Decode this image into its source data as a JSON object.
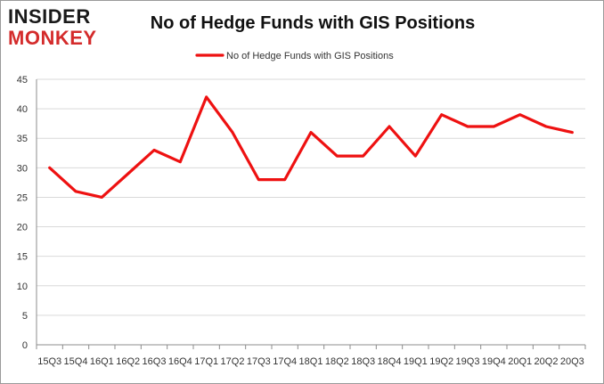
{
  "logo": {
    "top": "INSIDER",
    "bottom": "MONKEY"
  },
  "chart_data": {
    "type": "line",
    "title": "No of Hedge Funds with GIS Positions",
    "xlabel": "",
    "ylabel": "",
    "ylim": [
      0,
      45
    ],
    "yticks": [
      0,
      5,
      10,
      15,
      20,
      25,
      30,
      35,
      40,
      45
    ],
    "grid": true,
    "legend_position": "top-center",
    "categories": [
      "15Q3",
      "15Q4",
      "16Q1",
      "16Q2",
      "16Q3",
      "16Q4",
      "17Q1",
      "17Q2",
      "17Q3",
      "17Q4",
      "18Q1",
      "18Q2",
      "18Q3",
      "18Q4",
      "19Q1",
      "19Q2",
      "19Q3",
      "19Q4",
      "20Q1",
      "20Q2",
      "20Q3"
    ],
    "series": [
      {
        "name": "No of Hedge Funds with GIS Positions",
        "color": "#ee1111",
        "values": [
          30,
          26,
          25,
          29,
          33,
          31,
          42,
          36,
          28,
          28,
          36,
          32,
          32,
          37,
          32,
          39,
          37,
          37,
          39,
          37,
          36
        ]
      }
    ]
  }
}
